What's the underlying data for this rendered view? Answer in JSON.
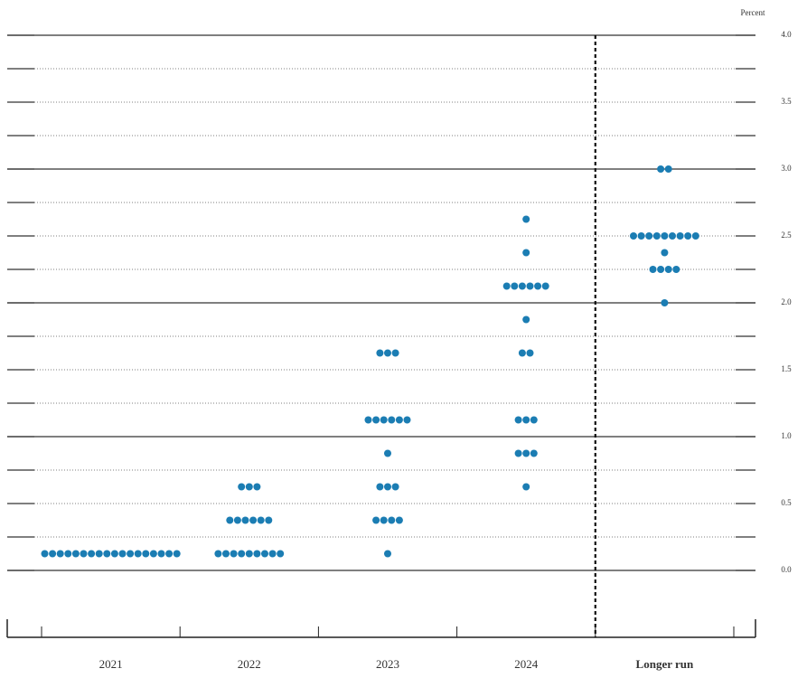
{
  "chart_data": {
    "type": "dot",
    "y_label": "Percent",
    "categories": [
      "2021",
      "2022",
      "2023",
      "2024",
      "Longer run"
    ],
    "color": "#1b7db3",
    "dots": [
      [
        {
          "value": 0.125,
          "count": 18
        }
      ],
      [
        {
          "value": 0.125,
          "count": 9
        },
        {
          "value": 0.375,
          "count": 6
        },
        {
          "value": 0.625,
          "count": 3
        }
      ],
      [
        {
          "value": 0.125,
          "count": 1
        },
        {
          "value": 0.375,
          "count": 4
        },
        {
          "value": 0.625,
          "count": 3
        },
        {
          "value": 0.875,
          "count": 1
        },
        {
          "value": 1.125,
          "count": 6
        },
        {
          "value": 1.625,
          "count": 3
        }
      ],
      [
        {
          "value": 0.625,
          "count": 1
        },
        {
          "value": 0.875,
          "count": 3
        },
        {
          "value": 1.125,
          "count": 3
        },
        {
          "value": 1.625,
          "count": 2
        },
        {
          "value": 1.875,
          "count": 1
        },
        {
          "value": 2.125,
          "count": 6
        },
        {
          "value": 2.375,
          "count": 1
        },
        {
          "value": 2.625,
          "count": 1
        }
      ],
      [
        {
          "value": 2.0,
          "count": 1
        },
        {
          "value": 2.25,
          "count": 4
        },
        {
          "value": 2.375,
          "count": 1
        },
        {
          "value": 2.5,
          "count": 9
        },
        {
          "value": 3.0,
          "count": 2
        }
      ]
    ],
    "ylim": [
      -0.5,
      4.0
    ],
    "yticks": [
      {
        "value": 0,
        "label": "0.0"
      },
      {
        "value": 0.5,
        "label": "0.5"
      },
      {
        "value": 1,
        "label": "1.0"
      },
      {
        "value": 1.5,
        "label": "1.5"
      },
      {
        "value": 2,
        "label": "2.0"
      },
      {
        "value": 2.5,
        "label": "2.5"
      },
      {
        "value": 3,
        "label": "3.0"
      },
      {
        "value": 3.5,
        "label": "3.5"
      },
      {
        "value": 4,
        "label": "4.0"
      }
    ],
    "minor_yticks": [
      0.25,
      0.75,
      1.25,
      1.75,
      2.25,
      2.75,
      3.25,
      3.75
    ],
    "grid": true
  }
}
